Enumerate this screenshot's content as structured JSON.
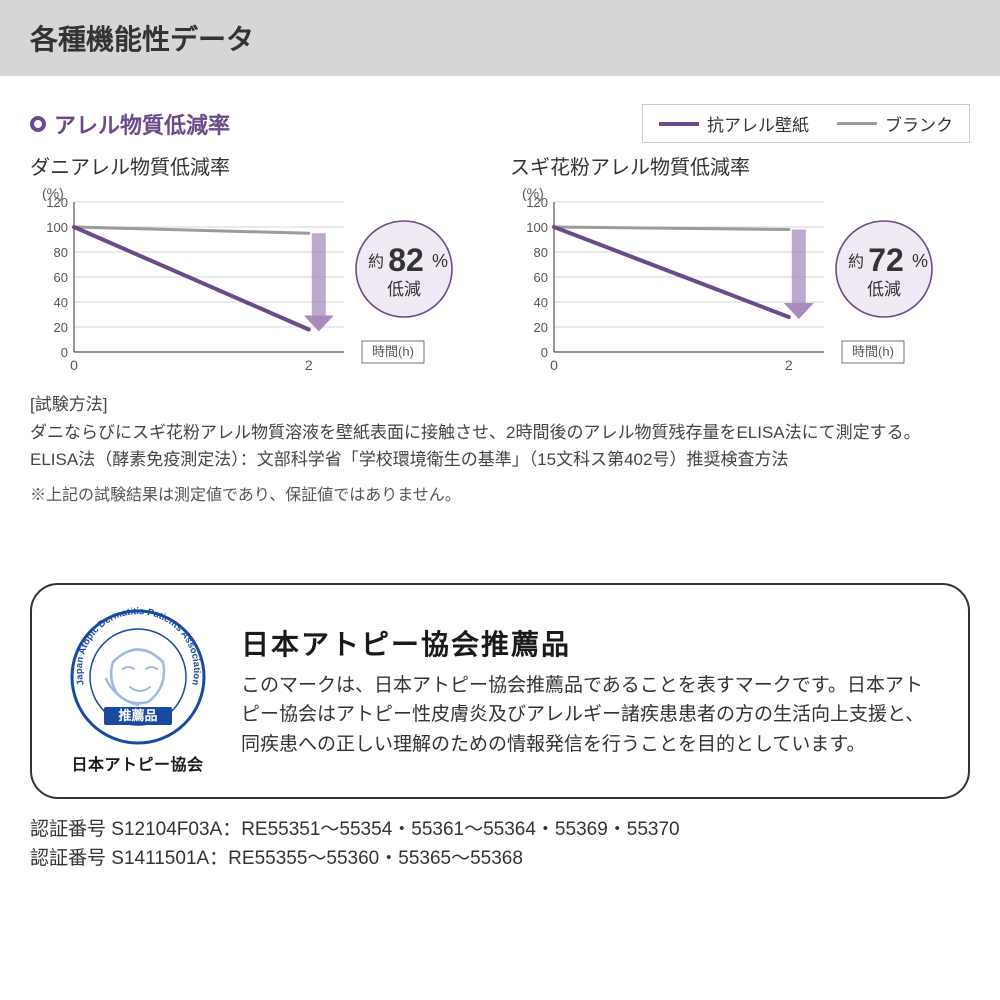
{
  "header": {
    "title": "各種機能性データ"
  },
  "section": {
    "title": "アレル物質低減率",
    "title_color": "#6a4a8a"
  },
  "legend": {
    "items": [
      {
        "label": "抗アレル壁紙",
        "color": "#6a4a8a",
        "width": 4
      },
      {
        "label": "ブランク",
        "color": "#9b9b9b",
        "width": 3
      }
    ],
    "border_color": "#cccccc"
  },
  "charts": [
    {
      "title": "ダニアレル物質低減率",
      "y_label": "(%)",
      "y_max": 120,
      "y_min": 0,
      "y_tick_step": 20,
      "x_ticks": [
        "0",
        "2"
      ],
      "x_axis_label": "時間(h)",
      "series": [
        {
          "name": "blank",
          "color": "#9b9b9b",
          "width": 3,
          "points": [
            [
              0,
              100
            ],
            [
              2,
              95
            ]
          ]
        },
        {
          "name": "treated",
          "color": "#6a4a8a",
          "width": 4,
          "points": [
            [
              0,
              100
            ],
            [
              2,
              18
            ]
          ]
        }
      ],
      "badge": {
        "prefix": "約",
        "value": "82",
        "unit": "%",
        "sub": "低減",
        "fill": "#efeaf3",
        "stroke": "#6a4a8a",
        "arrow_color": "#a78bbd"
      },
      "grid_color": "#aaaaaa",
      "axis_color": "#555555",
      "text_color": "#555555",
      "bg": "#ffffff"
    },
    {
      "title": "スギ花粉アレル物質低減率",
      "y_label": "(%)",
      "y_max": 120,
      "y_min": 0,
      "y_tick_step": 20,
      "x_ticks": [
        "0",
        "2"
      ],
      "x_axis_label": "時間(h)",
      "series": [
        {
          "name": "blank",
          "color": "#9b9b9b",
          "width": 3,
          "points": [
            [
              0,
              100
            ],
            [
              2,
              98
            ]
          ]
        },
        {
          "name": "treated",
          "color": "#6a4a8a",
          "width": 4,
          "points": [
            [
              0,
              100
            ],
            [
              2,
              28
            ]
          ]
        }
      ],
      "badge": {
        "prefix": "約",
        "value": "72",
        "unit": "%",
        "sub": "低減",
        "fill": "#efeaf3",
        "stroke": "#6a4a8a",
        "arrow_color": "#a78bbd"
      },
      "grid_color": "#aaaaaa",
      "axis_color": "#555555",
      "text_color": "#555555",
      "bg": "#ffffff"
    }
  ],
  "test_method": {
    "heading": "[試験方法]",
    "body1": "ダニならびにスギ花粉アレル物質溶液を壁紙表面に接触させ、2時間後のアレル物質残存量をELISA法にて測定する。",
    "body2": "ELISA法（酵素免疫測定法）：文部科学省「学校環境衛生の基準」（15文科ス第402号）推奨検査方法"
  },
  "note": "※上記の試験結果は測定値であり、保証値ではありません。",
  "certificate": {
    "logo": {
      "ring_text_top": "Atopic Dermatitis Patients",
      "ring_text_left": "Japan",
      "ring_text_right": "Association",
      "inner_label": "推薦品",
      "org_name": "日本アトピー協会",
      "primary_color": "#1a4aa0",
      "light_color": "#9fb8e0"
    },
    "title": "日本アトピー協会推薦品",
    "body": "このマークは、日本アトピー協会推薦品であることを表すマークです。日本アトピー協会はアトピー性皮膚炎及びアレルギー諸疾患患者の方の生活向上支援と、同疾患への正しい理解のための情報発信を行うことを目的としています。"
  },
  "cert_numbers": {
    "line1": "認証番号 S12104F03A：RE55351～55354・55361～55364・55369・55370",
    "line2": "認証番号 S1411501A：RE55355～55360・55365～55368"
  }
}
